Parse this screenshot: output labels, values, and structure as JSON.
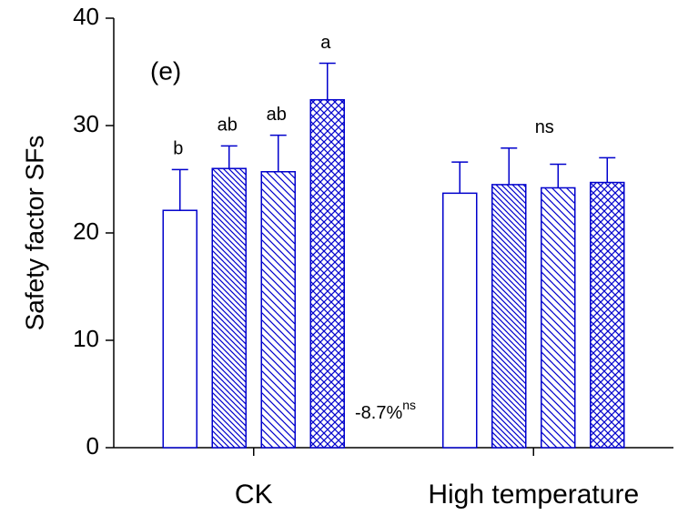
{
  "chart_data": {
    "type": "bar",
    "y_label": "Safety factor SFs",
    "panel_label": "(e)",
    "categories": [
      "CK",
      "High temperature"
    ],
    "series": [
      {
        "color": "#0000cc",
        "pattern": "none",
        "values": [
          22.1,
          23.7
        ],
        "errors": [
          3.8,
          2.9
        ]
      },
      {
        "color": "#0000cc",
        "pattern": "dense-diagonal",
        "values": [
          26.0,
          24.5
        ],
        "errors": [
          2.1,
          3.4
        ]
      },
      {
        "color": "#0000cc",
        "pattern": "diagonal",
        "values": [
          25.7,
          24.2
        ],
        "errors": [
          3.4,
          2.2
        ]
      },
      {
        "color": "#0000cc",
        "pattern": "crosshatch",
        "values": [
          32.4,
          24.7
        ],
        "errors": [
          3.4,
          2.3
        ]
      }
    ],
    "bar_letters": [
      "b",
      "ab",
      "ab",
      "a"
    ],
    "group_letter": "ns",
    "annotation": {
      "text": "-8.7%",
      "superscript": "ns"
    },
    "ylim": [
      0,
      40
    ],
    "yticks": [
      0,
      10,
      20,
      30,
      40
    ],
    "grid": false
  }
}
